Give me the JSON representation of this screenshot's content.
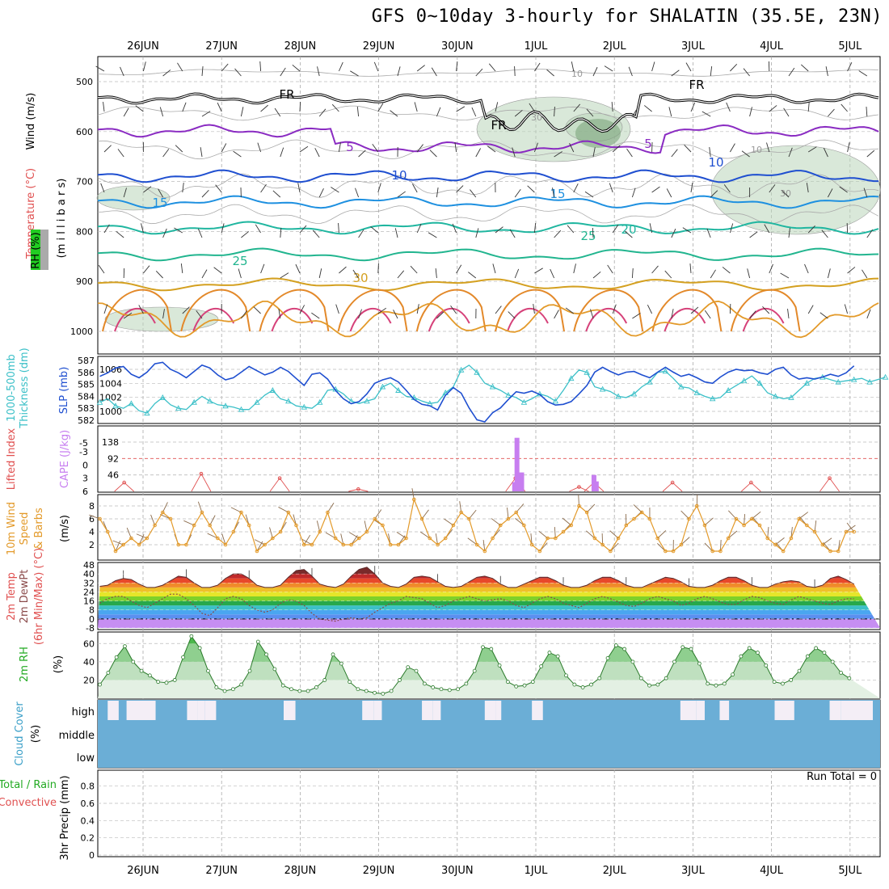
{
  "title": "GFS 0~10day 3-hourly for SHALATIN (35.5E, 23N)",
  "chart_data": [
    {
      "type": "line",
      "panel": "upper-air",
      "x_dates": [
        "26JUN",
        "27JUN",
        "28JUN",
        "29JUN",
        "30JUN",
        "1JUL",
        "2JUL",
        "3JUL",
        "4JUL",
        "5JUL"
      ],
      "ylabel_parts": [
        "Wind (m/s)",
        "Temperature (°C)",
        "RH (%)",
        "(m i l l i b a r s)"
      ],
      "yticks": [
        "500",
        "600",
        "700",
        "800",
        "900",
        "1000"
      ],
      "colors": {
        "temperature": "#e05050",
        "wind": "#000000",
        "rh": "#22aa22"
      },
      "contour_labels": [
        "10",
        "FR",
        "FR",
        "FR",
        "30",
        "5",
        "5",
        "10",
        "10",
        "10",
        "15",
        "15",
        "20",
        "25",
        "25",
        "30",
        "30"
      ],
      "series": [
        {
          "name": "FR",
          "level": 0
        },
        {
          "name": "5",
          "level": 5
        },
        {
          "name": "10",
          "level": 10
        },
        {
          "name": "15",
          "level": 15
        },
        {
          "name": "20",
          "level": 20
        },
        {
          "name": "25",
          "level": 25
        },
        {
          "name": "30",
          "level": 30
        }
      ]
    },
    {
      "type": "line",
      "panel": "thickness-slp",
      "ylabel_left": [
        "1000-500mb",
        "Thickness (dm)"
      ],
      "ylabel_right": "SLP (mb)",
      "yticks_left": [
        "587",
        "586",
        "585",
        "584",
        "583",
        "582"
      ],
      "yticks_right": [
        "1006",
        "1004",
        "1002",
        "1000"
      ],
      "series": [
        {
          "name": "Thickness",
          "values": [
            583.5,
            583.8,
            583.2,
            583.0,
            583.4,
            582.8,
            582.6,
            583.4,
            583.9,
            583.3,
            583.0,
            582.9,
            583.5,
            584.0,
            583.6,
            583.3,
            583.2,
            583.1,
            582.9,
            582.9,
            583.5,
            584.1,
            584.5,
            583.8,
            583.6,
            583.2,
            583.1,
            583.0,
            583.5,
            584.5,
            584.6,
            584.2,
            583.6,
            583.4,
            583.6,
            583.8,
            584.8,
            585.1,
            584.5,
            584.0,
            583.9,
            583.6,
            583.4,
            583.5,
            584.3,
            584.8,
            586.2,
            586.6,
            586.0,
            585.1,
            584.8,
            584.5,
            584.1,
            583.9,
            583.5,
            583.8,
            584.2,
            584.0,
            583.6,
            584.5,
            585.5,
            586.2,
            586.0,
            584.8,
            584.6,
            584.4,
            584.0,
            583.9,
            584.2,
            584.8,
            585.2,
            586.0,
            586.1,
            585.5,
            584.8,
            584.7,
            584.3,
            584.0,
            583.8,
            583.9,
            584.5,
            584.9,
            585.3,
            585.7,
            585.1,
            584.3,
            584.0,
            583.8,
            583.9,
            584.5,
            585.1,
            585.5,
            585.6,
            585.4,
            585.2,
            585.3,
            585.4,
            585.5,
            585.2,
            585.4,
            585.6
          ]
        },
        {
          "name": "SLP",
          "values": [
            1005.0,
            1005.5,
            1006.2,
            1006.4,
            1005.3,
            1004.8,
            1005.6,
            1006.8,
            1007.0,
            1006.0,
            1005.5,
            1004.8,
            1005.7,
            1006.6,
            1006.2,
            1005.2,
            1004.5,
            1004.8,
            1005.6,
            1006.4,
            1005.8,
            1005.2,
            1005.6,
            1006.3,
            1005.7,
            1004.7,
            1003.7,
            1005.3,
            1005.5,
            1004.6,
            1003.0,
            1001.8,
            1001.1,
            1001.4,
            1002.5,
            1004.0,
            1004.5,
            1004.8,
            1004.2,
            1003.0,
            1001.7,
            1001.0,
            1000.8,
            1000.2,
            1002.3,
            1003.4,
            1002.6,
            1000.5,
            998.8,
            998.5,
            999.8,
            1000.5,
            1001.7,
            1002.8,
            1002.6,
            1002.9,
            1002.4,
            1001.4,
            1000.9,
            1001.0,
            1001.4,
            1002.5,
            1003.7,
            1005.6,
            1006.3,
            1005.7,
            1005.2,
            1005.6,
            1005.7,
            1005.2,
            1004.8,
            1005.6,
            1006.3,
            1005.6,
            1005.0,
            1005.3,
            1004.8,
            1004.2,
            1004.0,
            1004.9,
            1005.6,
            1006.0,
            1005.8,
            1005.9,
            1005.5,
            1005.3,
            1006.0,
            1006.3,
            1005.2,
            1004.6,
            1004.8,
            1004.6,
            1004.9,
            1005.3,
            1005.0,
            1005.5,
            1006.5
          ]
        }
      ]
    },
    {
      "type": "bar",
      "panel": "cape-li",
      "ylabel_left": "Lifted Index",
      "ylabel_right": "CAPE (J/kg)",
      "yticks_left": [
        "-5",
        "-3",
        "0",
        "3",
        "6"
      ],
      "yticks_right": [
        "138",
        "92",
        "46"
      ],
      "cape_values": [
        {
          "day": 4.73,
          "value": 26
        },
        {
          "day": 4.76,
          "value": 180
        },
        {
          "day": 4.82,
          "value": 53
        },
        {
          "day": 5.74,
          "value": 46
        },
        {
          "day": 5.77,
          "value": 28
        }
      ],
      "li_peaks": [
        {
          "day": -0.24,
          "li": 4
        },
        {
          "day": 0.74,
          "li": 2
        },
        {
          "day": 1.74,
          "li": 3
        },
        {
          "day": 2.74,
          "li": 5.5
        },
        {
          "day": 4.74,
          "li": 3
        },
        {
          "day": 5.55,
          "li": 5
        },
        {
          "day": 5.74,
          "li": 4
        },
        {
          "day": 6.74,
          "li": 4
        },
        {
          "day": 7.74,
          "li": 4
        },
        {
          "day": 8.74,
          "li": 3
        }
      ]
    },
    {
      "type": "line",
      "panel": "wind-10m",
      "ylabel": [
        "10m Wind",
        "Speed",
        "& Barbs",
        "(m/s)"
      ],
      "yticks": [
        "8",
        "6",
        "4",
        "2"
      ],
      "series": [
        {
          "name": "Speed",
          "values": [
            6,
            4,
            1,
            2,
            3,
            2,
            3,
            5,
            7,
            6,
            2,
            2,
            5,
            7,
            5,
            3,
            2,
            4,
            7,
            5,
            1,
            2,
            3,
            4,
            7,
            5,
            2,
            2,
            4,
            7,
            3,
            2,
            2,
            3,
            4,
            6,
            5,
            2,
            2,
            3,
            9,
            6,
            3,
            2,
            3,
            5,
            7,
            6,
            2,
            1,
            3,
            5,
            6,
            7,
            5,
            2,
            1,
            3,
            3,
            4,
            5,
            8,
            7,
            3,
            2,
            1,
            3,
            5,
            6,
            7,
            6,
            3,
            1,
            1,
            2,
            6,
            8,
            5,
            1,
            1,
            3,
            6,
            5,
            6,
            5,
            3,
            2,
            1,
            3,
            6,
            5,
            4,
            2,
            1,
            1,
            4,
            4
          ]
        }
      ]
    },
    {
      "type": "area",
      "panel": "temp-2m",
      "ylabel": [
        "2m Temp",
        "2m DewPt",
        "(6hr Min/Max) (°C)"
      ],
      "yticks": [
        "48",
        "40",
        "32",
        "24",
        "16",
        "8",
        "0",
        "-8"
      ],
      "series": [
        {
          "name": "Temp",
          "values": [
            29,
            30,
            34,
            36,
            35,
            31,
            28,
            28,
            30,
            34,
            38,
            37,
            32,
            28,
            28,
            30,
            36,
            40,
            40,
            36,
            30,
            28,
            28,
            30,
            37,
            43,
            44,
            38,
            31,
            29,
            28,
            31,
            38,
            44,
            46,
            40,
            32,
            29,
            28,
            31,
            37,
            38,
            37,
            33,
            29,
            28,
            29,
            33,
            37,
            38,
            36,
            31,
            28,
            28,
            31,
            34,
            37,
            37,
            34,
            30,
            28,
            28,
            30,
            34,
            37,
            37,
            34,
            30,
            28,
            28,
            31,
            34,
            37,
            36,
            33,
            29,
            28,
            28,
            30,
            34,
            37,
            37,
            34,
            30,
            28,
            28,
            31,
            33,
            34,
            33,
            29,
            28,
            30,
            36,
            38,
            35,
            31
          ]
        },
        {
          "name": "DewPt",
          "values": [
            14,
            18,
            20,
            20,
            16,
            12,
            10,
            14,
            18,
            22,
            22,
            18,
            12,
            5,
            3,
            10,
            18,
            20,
            18,
            12,
            8,
            6,
            8,
            14,
            17,
            16,
            12,
            5,
            0,
            -1,
            -2,
            0,
            1,
            0,
            1,
            6,
            10,
            14,
            16,
            20,
            19,
            18,
            14,
            10,
            12,
            16,
            18,
            20,
            18,
            16,
            17,
            18,
            16,
            12,
            10,
            14,
            18,
            20,
            18,
            14,
            12,
            10,
            14,
            18,
            20,
            18,
            15,
            12,
            11,
            14,
            18,
            20,
            18,
            16,
            12,
            14,
            18,
            20,
            18,
            15,
            13,
            13,
            17,
            20,
            19,
            16,
            14,
            13,
            17,
            20,
            18,
            16,
            14,
            13,
            16,
            18,
            18
          ]
        }
      ]
    },
    {
      "type": "area",
      "panel": "rh-2m",
      "ylabel": [
        "2m RH",
        "(%)"
      ],
      "yticks": [
        "60",
        "40",
        "20"
      ],
      "series": [
        {
          "name": "RH",
          "values": [
            15,
            28,
            45,
            57,
            40,
            30,
            25,
            18,
            17,
            20,
            45,
            68,
            55,
            30,
            12,
            8,
            10,
            15,
            30,
            62,
            48,
            32,
            14,
            10,
            8,
            8,
            12,
            20,
            48,
            38,
            18,
            10,
            8,
            6,
            5,
            8,
            20,
            34,
            30,
            16,
            12,
            10,
            9,
            10,
            16,
            30,
            56,
            54,
            36,
            18,
            13,
            14,
            18,
            35,
            50,
            46,
            25,
            15,
            12,
            15,
            22,
            44,
            58,
            54,
            40,
            22,
            14,
            15,
            22,
            40,
            56,
            54,
            38,
            16,
            14,
            16,
            26,
            46,
            55,
            50,
            36,
            18,
            16,
            20,
            30,
            46,
            55,
            50,
            40,
            28,
            22
          ]
        }
      ]
    },
    {
      "type": "bar",
      "panel": "cloud-cover",
      "ylabel": [
        "Cloud Cover",
        "(%)"
      ],
      "ytick_labels": [
        "high",
        "middle",
        "low"
      ],
      "colors": {
        "clear": "#f4eef6",
        "cloud": "#6baed6"
      },
      "high_clear_days": [
        {
          "start": -0.45,
          "end": -0.31
        },
        {
          "start": -0.21,
          "end": 0.16
        },
        {
          "start": 0.56,
          "end": 0.69
        },
        {
          "start": 0.69,
          "end": 0.79
        },
        {
          "start": 0.79,
          "end": 0.93
        },
        {
          "start": 1.79,
          "end": 1.94
        },
        {
          "start": 2.79,
          "end": 2.94
        },
        {
          "start": 2.94,
          "end": 3.04
        },
        {
          "start": 3.55,
          "end": 3.69
        },
        {
          "start": 3.69,
          "end": 3.79
        },
        {
          "start": 4.35,
          "end": 4.49
        },
        {
          "start": 4.49,
          "end": 4.56
        },
        {
          "start": 4.95,
          "end": 5.09
        },
        {
          "start": 6.84,
          "end": 7.04
        },
        {
          "start": 7.04,
          "end": 7.15
        },
        {
          "start": 7.34,
          "end": 7.46
        },
        {
          "start": 8.04,
          "end": 8.29
        },
        {
          "start": 8.74,
          "end": 8.88
        },
        {
          "start": 8.88,
          "end": 9.29
        }
      ]
    },
    {
      "type": "bar",
      "panel": "precip",
      "ylabel": [
        "Total / Rain",
        "Convective",
        "3hr Precip (mm)"
      ],
      "yticks": [
        "0.8",
        "0.6",
        "0.4",
        "0.2",
        "0"
      ],
      "annotation": "Run Total = 0",
      "values": []
    }
  ]
}
